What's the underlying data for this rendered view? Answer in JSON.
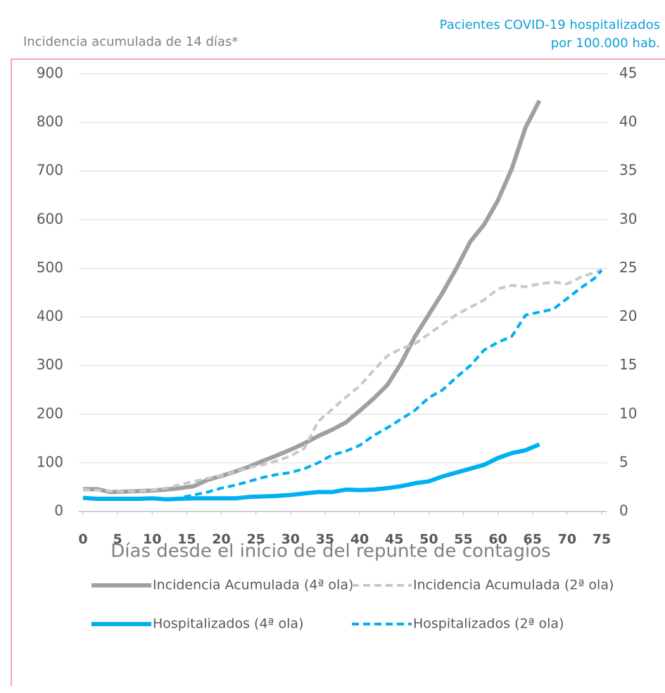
{
  "chart_data": {
    "type": "line",
    "y_label": "Incidencia acumulada de 14 días*",
    "y2_label": [
      "Pacientes COVID-19 hospitalizados",
      "por 100.000 hab."
    ],
    "x_label": "Días desde el inicio de del repunte de contagios",
    "x": [
      0,
      2,
      4,
      6,
      8,
      10,
      12,
      14,
      16,
      18,
      20,
      22,
      24,
      26,
      28,
      30,
      32,
      34,
      36,
      38,
      40,
      42,
      44,
      46,
      48,
      50,
      52,
      54,
      56,
      58,
      60,
      62,
      64,
      66,
      68,
      70,
      72,
      74,
      75
    ],
    "xlim": [
      0,
      75
    ],
    "xticks": [
      0,
      5,
      10,
      15,
      20,
      25,
      30,
      35,
      40,
      45,
      50,
      55,
      60,
      65,
      70,
      75
    ],
    "ylim": [
      0,
      900
    ],
    "yticks": [
      0,
      100,
      200,
      300,
      400,
      500,
      600,
      700,
      800,
      900
    ],
    "y2lim": [
      0,
      45
    ],
    "y2ticks": [
      0,
      5,
      10,
      15,
      20,
      25,
      30,
      35,
      40,
      45
    ],
    "grid": true,
    "series": [
      {
        "name": "Incidencia Acumulada (4ª ola)",
        "color": "#a0a0a0",
        "style": "solid",
        "axis": "y",
        "values": [
          46,
          46,
          40,
          41,
          42,
          43,
          45,
          48,
          52,
          65,
          73,
          82,
          92,
          104,
          115,
          127,
          140,
          155,
          168,
          183,
          207,
          232,
          260,
          305,
          360,
          405,
          450,
          500,
          555,
          590,
          640,
          705,
          790,
          845,
          null,
          null,
          null,
          null,
          null
        ]
      },
      {
        "name": "Incidencia Acumulada (2ª ola)",
        "color": "#c8c8c8",
        "style": "dashed",
        "axis": "y",
        "values": [
          45,
          44,
          42,
          41,
          42,
          44,
          48,
          55,
          62,
          68,
          74,
          82,
          90,
          96,
          104,
          114,
          130,
          185,
          210,
          235,
          258,
          290,
          320,
          335,
          345,
          365,
          385,
          405,
          420,
          435,
          458,
          465,
          462,
          468,
          472,
          468,
          482,
          492,
          497
        ]
      },
      {
        "name": "Hospitalizados (4ª ola)",
        "color": "#00b0f0",
        "style": "solid",
        "axis": "y2",
        "values": [
          1.4,
          1.3,
          1.3,
          1.3,
          1.3,
          1.35,
          1.25,
          1.3,
          1.35,
          1.35,
          1.35,
          1.35,
          1.5,
          1.55,
          1.6,
          1.7,
          1.85,
          2.0,
          2.0,
          2.25,
          2.2,
          2.25,
          2.4,
          2.6,
          2.9,
          3.1,
          3.6,
          4.0,
          4.4,
          4.8,
          5.5,
          6.0,
          6.3,
          6.9,
          null,
          null,
          null,
          null,
          null
        ]
      },
      {
        "name": "Hospitalizados (2ª ola)",
        "color": "#00b0f0",
        "style": "dashed",
        "axis": "y2",
        "values": [
          1.4,
          1.3,
          1.35,
          1.35,
          1.35,
          1.3,
          1.2,
          1.4,
          1.7,
          2.0,
          2.4,
          2.7,
          3.1,
          3.5,
          3.8,
          4.0,
          4.4,
          5.0,
          5.8,
          6.2,
          6.8,
          7.8,
          8.6,
          9.5,
          10.4,
          11.7,
          12.5,
          13.8,
          15.0,
          16.6,
          17.4,
          18.0,
          20.2,
          20.5,
          20.8,
          21.9,
          23.0,
          24.0,
          24.8
        ]
      }
    ]
  }
}
